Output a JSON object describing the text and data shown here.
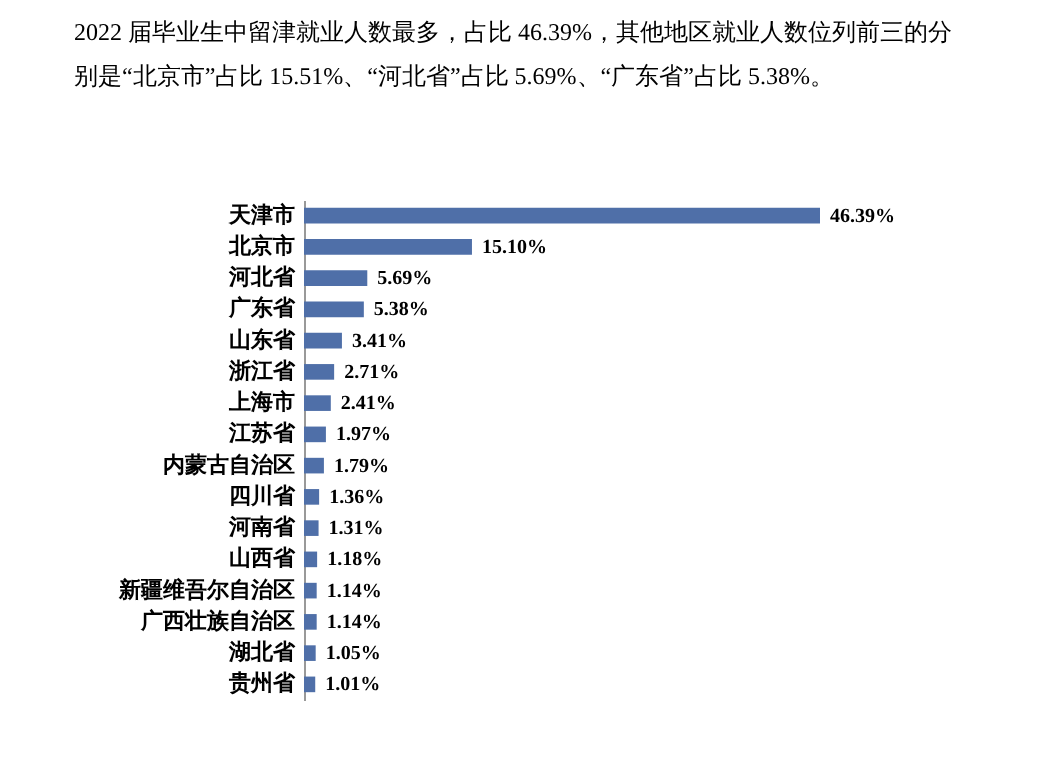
{
  "chart_data": {
    "type": "bar",
    "orientation": "horizontal",
    "title": "2022 届毕业生中留津就业人数最多，占比 46.39%，其他地区就业人数位列前三的分别是“北京市”占比 15.51%、“河北省”占比 5.69%、“广东省”占比 5.38%。",
    "categories": [
      "天津市",
      "北京市",
      "河北省",
      "广东省",
      "山东省",
      "浙江省",
      "上海市",
      "江苏省",
      "内蒙古自治区",
      "四川省",
      "河南省",
      "山西省",
      "新疆维吾尔自治区",
      "广西壮族自治区",
      "湖北省",
      "贵州省"
    ],
    "values": [
      46.39,
      15.1,
      5.69,
      5.38,
      3.41,
      2.71,
      2.41,
      1.97,
      1.79,
      1.36,
      1.31,
      1.18,
      1.14,
      1.14,
      1.05,
      1.01
    ],
    "value_labels": [
      "46.39%",
      "15.10%",
      "5.69%",
      "5.38%",
      "3.41%",
      "2.71%",
      "2.41%",
      "1.97%",
      "1.79%",
      "1.36%",
      "1.31%",
      "1.18%",
      "1.14%",
      "1.14%",
      "1.05%",
      "1.01%"
    ],
    "color": "#4f6fa8"
  }
}
